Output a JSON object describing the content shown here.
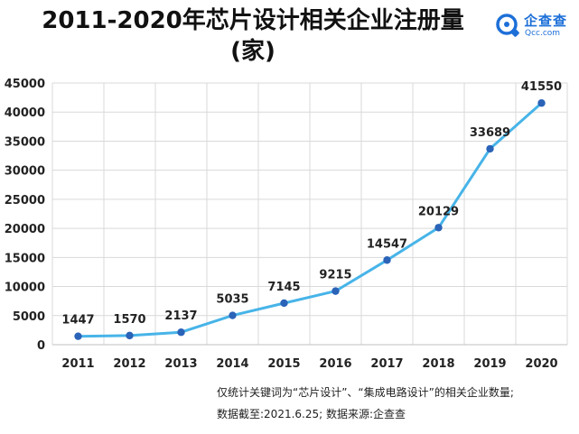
{
  "header": {
    "title_line1": "2011-2020年芯片设计相关企业注册量",
    "title_line2": "(家)"
  },
  "logo": {
    "name": "企查查",
    "url": "Qcc.com",
    "icon": "qcc-logo-icon",
    "color": "#1d6fd8"
  },
  "chart_data": {
    "type": "line",
    "title": "2011-2020年芯片设计相关企业注册量(家)",
    "categories": [
      "2011",
      "2012",
      "2013",
      "2014",
      "2015",
      "2016",
      "2017",
      "2018",
      "2019",
      "2020"
    ],
    "series": [
      {
        "values": [
          1447,
          1570,
          2137,
          5035,
          7145,
          9215,
          14547,
          20129,
          33689,
          41550
        ],
        "color": "#47b4e8",
        "marker_color": "#2a63b8"
      }
    ],
    "ylim": [
      0,
      45000
    ],
    "yticks": [
      0,
      5000,
      10000,
      15000,
      20000,
      25000,
      30000,
      35000,
      40000,
      45000
    ],
    "grid": true,
    "data_labels": true
  },
  "notes": {
    "line1": "仅统计关键词为“芯片设计”、“集成电路设计”的相关企业数量;",
    "line2": "数据截至:2021.6.25; 数据来源:企查查"
  }
}
